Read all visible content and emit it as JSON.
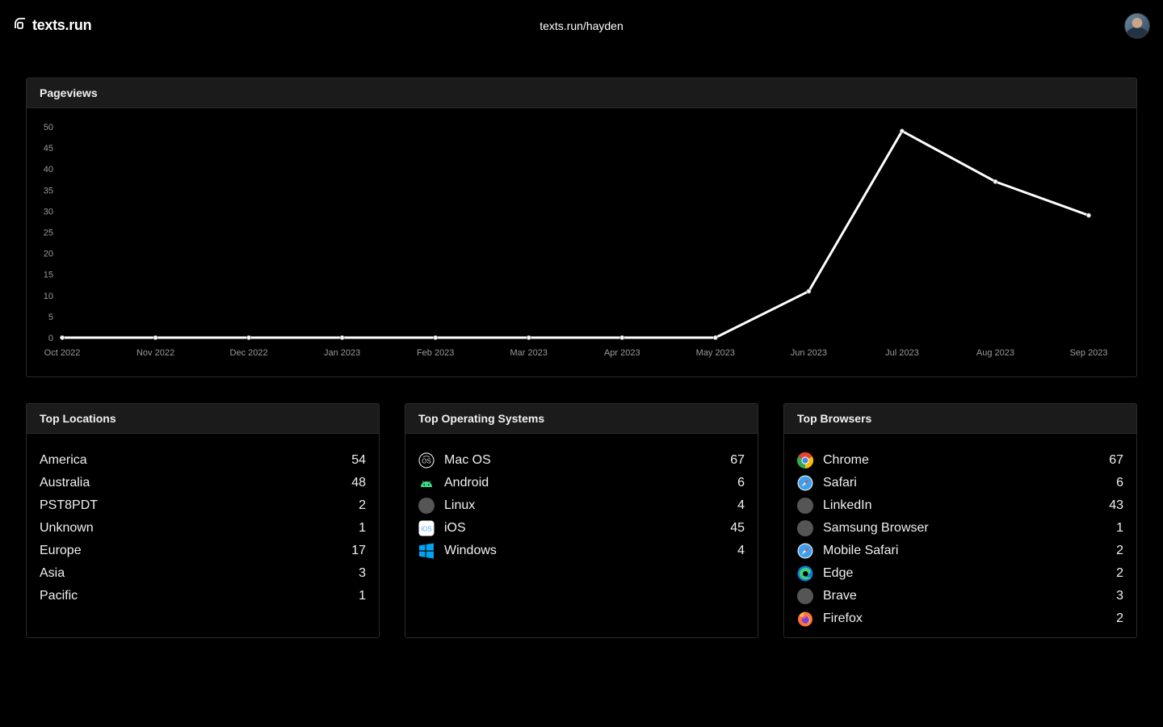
{
  "header": {
    "brand": "texts.run",
    "url": "texts.run/hayden"
  },
  "pageviews": {
    "title": "Pageviews"
  },
  "chart_data": {
    "type": "line",
    "categories": [
      "Oct 2022",
      "Nov 2022",
      "Dec 2022",
      "Jan 2023",
      "Feb 2023",
      "Mar 2023",
      "Apr 2023",
      "May 2023",
      "Jun 2023",
      "Jul 2023",
      "Aug 2023",
      "Sep 2023"
    ],
    "values": [
      0,
      0,
      0,
      0,
      0,
      0,
      0,
      0,
      11,
      49,
      37,
      29
    ],
    "yticks": [
      0,
      5,
      10,
      15,
      20,
      25,
      30,
      35,
      40,
      45,
      50
    ],
    "ylim": [
      0,
      50
    ],
    "grid": false,
    "line_color": "#ffffff"
  },
  "locations": {
    "title": "Top Locations",
    "items": [
      {
        "label": "America",
        "count": "54"
      },
      {
        "label": "Australia",
        "count": "48"
      },
      {
        "label": "PST8PDT",
        "count": "2"
      },
      {
        "label": "Unknown",
        "count": "1"
      },
      {
        "label": "Europe",
        "count": "17"
      },
      {
        "label": "Asia",
        "count": "3"
      },
      {
        "label": "Pacific",
        "count": "1"
      }
    ]
  },
  "os": {
    "title": "Top Operating Systems",
    "items": [
      {
        "label": "Mac OS",
        "count": "67",
        "icon": "macos-icon"
      },
      {
        "label": "Android",
        "count": "6",
        "icon": "android-icon"
      },
      {
        "label": "Linux",
        "count": "4",
        "icon": "placeholder-circle-icon"
      },
      {
        "label": "iOS",
        "count": "45",
        "icon": "ios-icon"
      },
      {
        "label": "Windows",
        "count": "4",
        "icon": "windows-icon"
      }
    ]
  },
  "browsers": {
    "title": "Top Browsers",
    "items": [
      {
        "label": "Chrome",
        "count": "67",
        "icon": "chrome-icon"
      },
      {
        "label": "Safari",
        "count": "6",
        "icon": "safari-icon"
      },
      {
        "label": "LinkedIn",
        "count": "43",
        "icon": "placeholder-circle-icon"
      },
      {
        "label": "Samsung Browser",
        "count": "1",
        "icon": "placeholder-circle-icon"
      },
      {
        "label": "Mobile Safari",
        "count": "2",
        "icon": "safari-icon"
      },
      {
        "label": "Edge",
        "count": "2",
        "icon": "edge-icon"
      },
      {
        "label": "Brave",
        "count": "3",
        "icon": "placeholder-circle-icon"
      },
      {
        "label": "Firefox",
        "count": "2",
        "icon": "firefox-icon"
      }
    ]
  }
}
